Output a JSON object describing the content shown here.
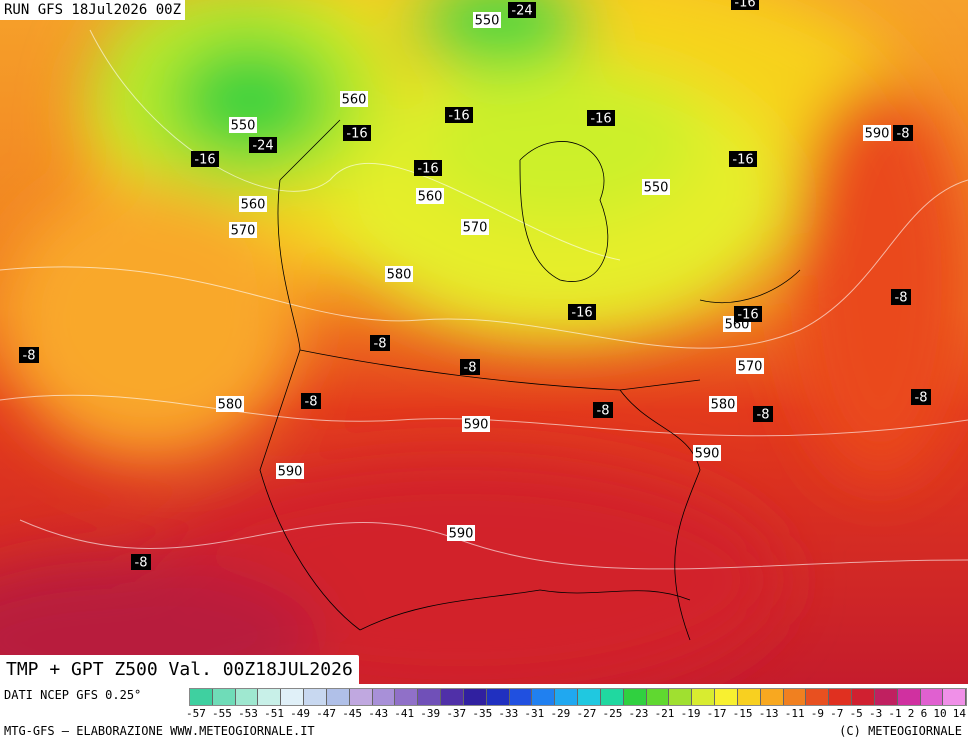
{
  "header": {
    "run": "RUN GFS 18Jul2026 00Z",
    "valid": "TMP + GPT Z500 Val. 00Z18JUL2026"
  },
  "map_labels": [
    "550",
    "-24",
    "-16",
    "560",
    "-16",
    "550",
    "-24",
    "-16",
    "-16",
    "-16",
    "590",
    "-8",
    "-16",
    "-16",
    "550",
    "560",
    "560",
    "570",
    "570",
    "580",
    "-8",
    "-16",
    "560",
    "-16",
    "-8",
    "-8",
    "-8",
    "570",
    "580",
    "-8",
    "-8",
    "580",
    "-8",
    "-8",
    "590",
    "590",
    "590",
    "590",
    "-8"
  ],
  "footer": {
    "source": "DATI NCEP GFS 0.25°",
    "credit": "MTG-GFS — ELABORAZIONE WWW.METEOGIORNALE.IT",
    "copyright": "(C) METEOGIORNALE",
    "scale": [
      "-57",
      "-55",
      "-53",
      "-51",
      "-49",
      "-47",
      "-45",
      "-43",
      "-41",
      "-39",
      "-37",
      "-35",
      "-33",
      "-31",
      "-29",
      "-27",
      "-25",
      "-23",
      "-21",
      "-19",
      "-17",
      "-15",
      "-13",
      "-11",
      "-9",
      "-7",
      "-5",
      "-3",
      "-1",
      "2",
      "6",
      "10",
      "14"
    ]
  }
}
